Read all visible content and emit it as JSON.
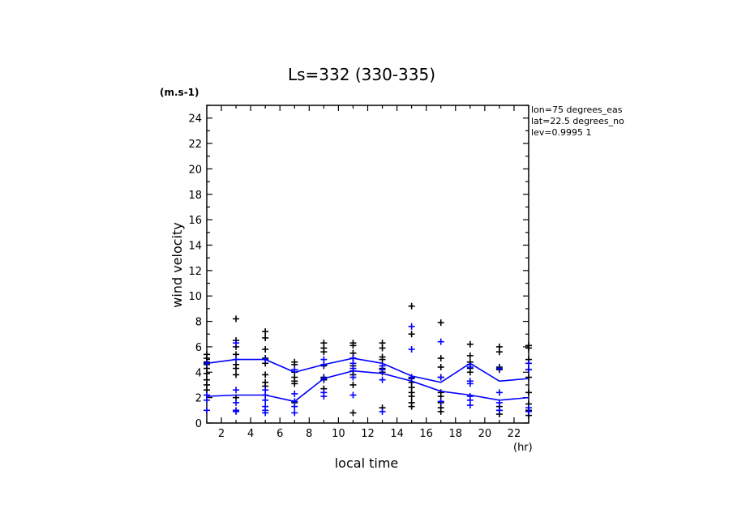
{
  "chart_data": {
    "type": "scatter",
    "title": "Ls=332 (330-335)",
    "ylabel": "wind velocity",
    "yunit": "(m.s-1)",
    "xlabel": "local time",
    "xunit": "(hr)",
    "xlim": [
      1,
      23
    ],
    "ylim": [
      0,
      25
    ],
    "xticks": [
      2,
      4,
      6,
      8,
      10,
      12,
      14,
      16,
      18,
      20,
      22
    ],
    "yticks": [
      0,
      2,
      4,
      6,
      8,
      10,
      12,
      14,
      16,
      18,
      20,
      22,
      24
    ],
    "info": [
      "lon=75 degrees_eas",
      "lat=22.5 degrees_no",
      "lev=0.9995 1"
    ],
    "colors": {
      "black": "#000000",
      "blue": "#0000ff"
    },
    "series": [
      {
        "color": "black",
        "style": "markers",
        "points": [
          [
            1,
            5.4
          ],
          [
            1,
            5.1
          ],
          [
            1,
            4.8
          ],
          [
            1,
            4.6
          ],
          [
            1,
            4.3
          ],
          [
            1,
            3.9
          ],
          [
            1,
            3.4
          ],
          [
            1,
            3.0
          ],
          [
            1,
            2.6
          ],
          [
            3,
            8.2
          ],
          [
            3,
            6.5
          ],
          [
            3,
            6.0
          ],
          [
            3,
            5.4
          ],
          [
            3,
            4.6
          ],
          [
            3,
            4.3
          ],
          [
            3,
            3.8
          ],
          [
            3,
            2.0
          ],
          [
            5,
            7.2
          ],
          [
            5,
            6.7
          ],
          [
            5,
            5.8
          ],
          [
            5,
            5.1
          ],
          [
            5,
            4.7
          ],
          [
            5,
            3.8
          ],
          [
            5,
            3.2
          ],
          [
            5,
            2.9
          ],
          [
            7,
            4.8
          ],
          [
            7,
            4.6
          ],
          [
            7,
            4.0
          ],
          [
            7,
            3.6
          ],
          [
            7,
            3.3
          ],
          [
            7,
            3.1
          ],
          [
            7,
            1.6
          ],
          [
            9,
            6.3
          ],
          [
            9,
            5.9
          ],
          [
            9,
            5.6
          ],
          [
            9,
            4.5
          ],
          [
            9,
            3.6
          ],
          [
            9,
            3.4
          ],
          [
            9,
            2.7
          ],
          [
            11,
            6.3
          ],
          [
            11,
            6.1
          ],
          [
            11,
            5.5
          ],
          [
            11,
            5.1
          ],
          [
            11,
            4.5
          ],
          [
            11,
            4.1
          ],
          [
            11,
            3.8
          ],
          [
            11,
            3.0
          ],
          [
            11,
            0.8
          ],
          [
            13,
            6.3
          ],
          [
            13,
            5.9
          ],
          [
            13,
            5.2
          ],
          [
            13,
            5.0
          ],
          [
            13,
            4.3
          ],
          [
            13,
            4.0
          ],
          [
            13,
            1.2
          ],
          [
            15,
            9.2
          ],
          [
            15,
            7.0
          ],
          [
            15,
            3.5
          ],
          [
            15,
            3.2
          ],
          [
            15,
            2.8
          ],
          [
            15,
            2.4
          ],
          [
            15,
            2.1
          ],
          [
            15,
            1.6
          ],
          [
            15,
            1.3
          ],
          [
            17,
            7.9
          ],
          [
            17,
            5.1
          ],
          [
            17,
            4.4
          ],
          [
            17,
            3.6
          ],
          [
            17,
            2.4
          ],
          [
            17,
            2.1
          ],
          [
            17,
            1.6
          ],
          [
            17,
            1.2
          ],
          [
            17,
            0.9
          ],
          [
            19,
            6.2
          ],
          [
            19,
            5.3
          ],
          [
            19,
            4.8
          ],
          [
            19,
            4.6
          ],
          [
            19,
            4.3
          ],
          [
            19,
            4.0
          ],
          [
            21,
            6.0
          ],
          [
            21,
            5.6
          ],
          [
            21,
            4.4
          ],
          [
            21,
            4.2
          ],
          [
            21,
            1.3
          ],
          [
            21,
            1.0
          ],
          [
            21,
            0.7
          ],
          [
            23,
            6.1
          ],
          [
            23,
            5.9
          ],
          [
            23,
            5.0
          ],
          [
            23,
            4.2
          ],
          [
            23,
            3.6
          ],
          [
            23,
            2.4
          ],
          [
            23,
            1.5
          ],
          [
            23,
            1.0
          ],
          [
            23,
            0.6
          ]
        ]
      },
      {
        "color": "blue",
        "style": "markers",
        "points": [
          [
            1,
            4.7
          ],
          [
            1,
            2.2
          ],
          [
            1,
            1.8
          ],
          [
            1,
            1.0
          ],
          [
            3,
            6.3
          ],
          [
            3,
            5.0
          ],
          [
            3,
            2.6
          ],
          [
            3,
            1.6
          ],
          [
            3,
            1.0
          ],
          [
            3,
            0.9
          ],
          [
            5,
            5.0
          ],
          [
            5,
            2.6
          ],
          [
            5,
            2.2
          ],
          [
            5,
            1.8
          ],
          [
            5,
            1.3
          ],
          [
            5,
            1.0
          ],
          [
            5,
            0.8
          ],
          [
            7,
            4.2
          ],
          [
            7,
            2.3
          ],
          [
            7,
            1.7
          ],
          [
            7,
            1.3
          ],
          [
            7,
            0.8
          ],
          [
            9,
            5.0
          ],
          [
            9,
            4.6
          ],
          [
            9,
            3.5
          ],
          [
            9,
            2.4
          ],
          [
            9,
            2.1
          ],
          [
            11,
            5.1
          ],
          [
            11,
            4.7
          ],
          [
            11,
            4.3
          ],
          [
            11,
            3.6
          ],
          [
            11,
            2.2
          ],
          [
            13,
            4.5
          ],
          [
            13,
            4.2
          ],
          [
            13,
            3.4
          ],
          [
            13,
            0.9
          ],
          [
            15,
            7.6
          ],
          [
            15,
            5.8
          ],
          [
            15,
            3.6
          ],
          [
            17,
            6.4
          ],
          [
            17,
            3.6
          ],
          [
            17,
            1.7
          ],
          [
            19,
            4.4
          ],
          [
            19,
            3.3
          ],
          [
            19,
            3.1
          ],
          [
            19,
            2.1
          ],
          [
            19,
            1.8
          ],
          [
            19,
            1.4
          ],
          [
            21,
            4.3
          ],
          [
            21,
            2.4
          ],
          [
            21,
            1.6
          ],
          [
            21,
            1.0
          ],
          [
            23,
            4.7
          ],
          [
            23,
            4.2
          ],
          [
            23,
            1.2
          ],
          [
            23,
            0.9
          ]
        ]
      },
      {
        "color": "blue",
        "style": "line",
        "points": [
          [
            1,
            4.7
          ],
          [
            3,
            5.0
          ],
          [
            5,
            5.0
          ],
          [
            7,
            4.0
          ],
          [
            9,
            4.6
          ],
          [
            11,
            5.1
          ],
          [
            13,
            4.7
          ],
          [
            15,
            3.7
          ],
          [
            17,
            3.2
          ],
          [
            19,
            4.7
          ],
          [
            21,
            3.3
          ],
          [
            23,
            3.5
          ]
        ]
      },
      {
        "color": "blue",
        "style": "line",
        "points": [
          [
            1,
            2.1
          ],
          [
            3,
            2.2
          ],
          [
            5,
            2.2
          ],
          [
            7,
            1.7
          ],
          [
            9,
            3.5
          ],
          [
            11,
            4.1
          ],
          [
            13,
            3.9
          ],
          [
            15,
            3.3
          ],
          [
            17,
            2.5
          ],
          [
            19,
            2.2
          ],
          [
            21,
            1.8
          ],
          [
            23,
            2.0
          ]
        ]
      }
    ]
  }
}
